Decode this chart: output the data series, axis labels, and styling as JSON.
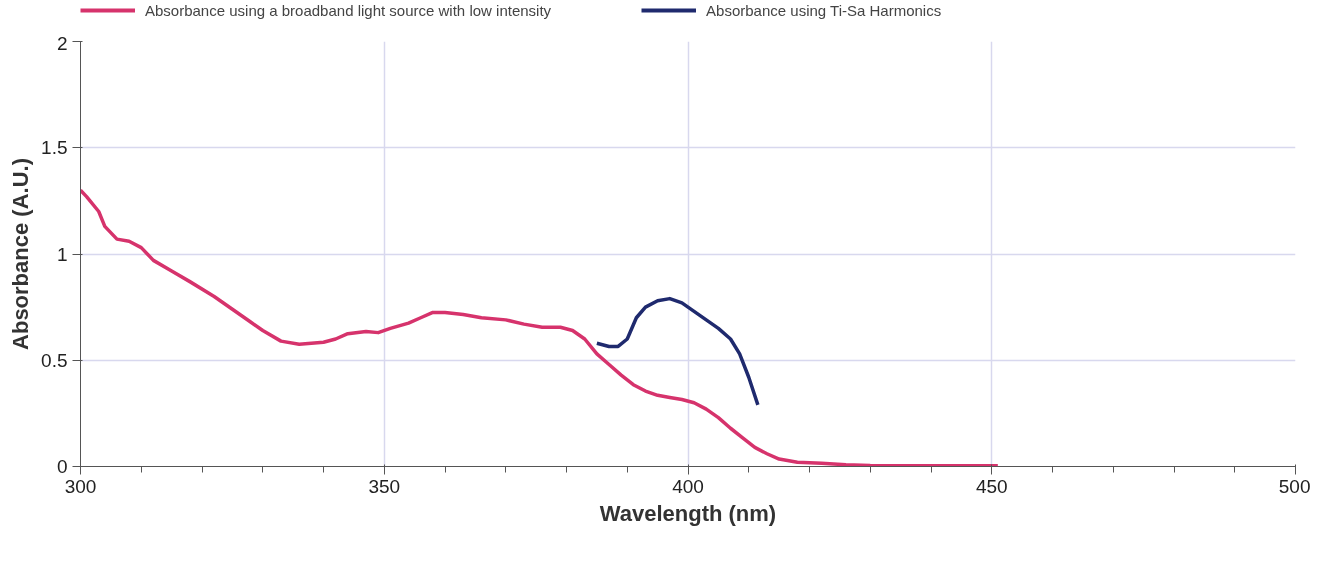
{
  "chart_data": {
    "type": "line",
    "xlabel": "Wavelength (nm)",
    "ylabel": "Absorbance (A.U.)",
    "xlim": [
      300,
      500
    ],
    "ylim": [
      0,
      2
    ],
    "xticks": [
      300,
      {
        "value": 310,
        "label": null
      },
      {
        "value": 320,
        "label": null
      },
      {
        "value": 330,
        "label": null
      },
      {
        "value": 340,
        "label": null
      },
      350,
      {
        "value": 360,
        "label": null
      },
      {
        "value": 370,
        "label": null
      },
      {
        "value": 380,
        "label": null
      },
      {
        "value": 390,
        "label": null
      },
      400,
      {
        "value": 410,
        "label": null
      },
      {
        "value": 420,
        "label": null
      },
      {
        "value": 430,
        "label": null
      },
      {
        "value": 440,
        "label": null
      },
      450,
      {
        "value": 460,
        "label": null
      },
      {
        "value": 470,
        "label": null
      },
      {
        "value": 480,
        "label": null
      },
      {
        "value": 490,
        "label": null
      },
      500
    ],
    "yticks": [
      0,
      0.5,
      1,
      1.5,
      2
    ],
    "grid": true,
    "legend": "top",
    "line_style": "solid",
    "marker": "none",
    "series": [
      {
        "name": "Absorbance using a broadband light source with low intensity",
        "color": "#d6336c",
        "x": [
          300,
          301,
          303,
          304,
          306,
          308,
          310,
          312,
          315,
          318,
          322,
          325,
          328,
          330,
          333,
          336,
          338,
          340,
          342,
          344,
          347,
          349,
          351,
          354,
          356,
          358,
          360,
          363,
          366,
          370,
          373,
          376,
          379,
          381,
          383,
          385,
          387,
          389,
          391,
          393,
          395,
          397,
          399,
          401,
          403,
          405,
          407,
          409,
          411,
          413,
          415,
          418,
          422,
          426,
          430,
          440,
          451
        ],
        "values": [
          1.3,
          1.27,
          1.2,
          1.13,
          1.07,
          1.06,
          1.03,
          0.97,
          0.92,
          0.87,
          0.8,
          0.74,
          0.68,
          0.64,
          0.59,
          0.575,
          0.58,
          0.585,
          0.6,
          0.625,
          0.635,
          0.63,
          0.65,
          0.675,
          0.7,
          0.725,
          0.725,
          0.715,
          0.7,
          0.69,
          0.67,
          0.655,
          0.655,
          0.64,
          0.6,
          0.53,
          0.48,
          0.43,
          0.385,
          0.355,
          0.335,
          0.325,
          0.315,
          0.3,
          0.27,
          0.23,
          0.18,
          0.135,
          0.09,
          0.06,
          0.035,
          0.02,
          0.015,
          0.008,
          0.005,
          0.004,
          0.003
        ]
      },
      {
        "name": "Absorbance using Ti-Sa Harmonics",
        "color": "#1f2a6e",
        "x": [
          385,
          387,
          388.5,
          390,
          391.5,
          393,
          395,
          397,
          399,
          401,
          403,
          405,
          407,
          408.5,
          410,
          411.5
        ],
        "values": [
          0.58,
          0.565,
          0.565,
          0.6,
          0.7,
          0.75,
          0.78,
          0.79,
          0.77,
          0.73,
          0.69,
          0.65,
          0.6,
          0.53,
          0.42,
          0.29
        ]
      }
    ]
  }
}
